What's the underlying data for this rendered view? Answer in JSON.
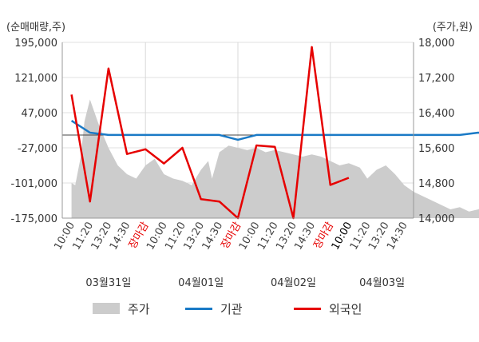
{
  "colors": {
    "price_area": "#cccccc",
    "institution_line": "#1a7ac6",
    "foreign_line": "#e60000",
    "grid": "#e0e0e0",
    "zero_line": "#444444",
    "session_close_text": "#e60000"
  },
  "chart_data": {
    "type": "line",
    "left_axis": {
      "unit_label": "(순매매량,주)",
      "ticks": [
        "195,000",
        "121,000",
        "47,000",
        "-27,000",
        "-101,000",
        "-175,000"
      ],
      "range": [
        -175000,
        195000
      ]
    },
    "right_axis": {
      "unit_label": "(주가,원)",
      "ticks": [
        "18,000",
        "17,200",
        "16,400",
        "15,600",
        "14,800",
        "14,000"
      ],
      "range": [
        14000,
        18000
      ]
    },
    "x_ticks": [
      "10:00",
      "11:20",
      "13:20",
      "14:30",
      "장마감",
      "10:00",
      "11:20",
      "13:20",
      "14:30",
      "장마감",
      "10:00",
      "11:20",
      "13:20",
      "14:30",
      "장마감",
      "10:00",
      "11:20",
      "13:20",
      "14:30"
    ],
    "dates": [
      "03월31일",
      "04월01일",
      "04월02일",
      "04월03일"
    ],
    "series": [
      {
        "name": "주가",
        "axis": "right",
        "kind": "area",
        "points": [
          [
            1,
            14800
          ],
          [
            1.2,
            14750
          ],
          [
            1.5,
            15400
          ],
          [
            1.7,
            16200
          ],
          [
            2,
            16700
          ],
          [
            2.5,
            16100
          ],
          [
            3,
            15600
          ],
          [
            3.5,
            15200
          ],
          [
            4,
            15000
          ],
          [
            4.5,
            14900
          ],
          [
            5,
            15200
          ],
          [
            5.5,
            15350
          ],
          [
            6,
            15000
          ],
          [
            6.5,
            14900
          ],
          [
            7,
            14850
          ],
          [
            7.5,
            14750
          ],
          [
            8,
            15100
          ],
          [
            8.4,
            15300
          ],
          [
            8.6,
            14900
          ],
          [
            9,
            15500
          ],
          [
            9.5,
            15650
          ],
          [
            10,
            15600
          ],
          [
            10.5,
            15550
          ],
          [
            11,
            15600
          ],
          [
            11.5,
            15500
          ],
          [
            12,
            15550
          ],
          [
            12.5,
            15500
          ],
          [
            13,
            15450
          ],
          [
            13.5,
            15400
          ],
          [
            14,
            15450
          ],
          [
            14.5,
            15400
          ],
          [
            15,
            15300
          ],
          [
            15.5,
            15200
          ],
          [
            16,
            15250
          ],
          [
            16.6,
            15150
          ],
          [
            17,
            14900
          ],
          [
            17.5,
            15100
          ],
          [
            18,
            15200
          ],
          [
            18.5,
            15000
          ],
          [
            19,
            14750
          ],
          [
            19.5,
            14600
          ],
          [
            20,
            14500
          ],
          [
            20.5,
            14400
          ],
          [
            21,
            14300
          ],
          [
            21.5,
            14200
          ],
          [
            22,
            14250
          ],
          [
            22.5,
            14150
          ],
          [
            23,
            14200
          ],
          [
            23.5,
            14300
          ],
          [
            23.8,
            14250
          ],
          [
            24,
            15000
          ],
          [
            24.5,
            14900
          ],
          [
            25,
            14800
          ],
          [
            25.3,
            14150
          ]
        ]
      },
      {
        "name": "기관",
        "axis": "left",
        "kind": "line",
        "points": [
          [
            1,
            30000
          ],
          [
            2,
            5000
          ],
          [
            3,
            0
          ],
          [
            4,
            0
          ],
          [
            5,
            0
          ],
          [
            6,
            0
          ],
          [
            7,
            0
          ],
          [
            8,
            0
          ],
          [
            9,
            0
          ],
          [
            10,
            -10000
          ],
          [
            11,
            0
          ],
          [
            12,
            0
          ],
          [
            13,
            0
          ],
          [
            14,
            0
          ],
          [
            15,
            0
          ],
          [
            16,
            0
          ],
          [
            17,
            0
          ],
          [
            18,
            0
          ],
          [
            19,
            0
          ],
          [
            20,
            0
          ],
          [
            21,
            0
          ],
          [
            22,
            0
          ],
          [
            23,
            5000
          ],
          [
            24,
            0
          ],
          [
            25,
            0
          ],
          [
            26,
            0
          ]
        ]
      },
      {
        "name": "외국인",
        "axis": "left",
        "kind": "line",
        "points": [
          [
            1,
            85000
          ],
          [
            2,
            -140000
          ],
          [
            3,
            140000
          ],
          [
            4,
            -40000
          ],
          [
            5,
            -30000
          ],
          [
            6,
            -60000
          ],
          [
            7,
            -27000
          ],
          [
            8,
            -135000
          ],
          [
            9,
            -140000
          ],
          [
            10,
            -175000
          ],
          [
            11,
            -22000
          ],
          [
            12,
            -25000
          ],
          [
            13,
            -175000
          ],
          [
            14,
            185000
          ],
          [
            15,
            -105000
          ],
          [
            16,
            -90000
          ]
        ]
      }
    ],
    "grid": true,
    "legend_position": "bottom"
  },
  "legend": {
    "price": "주가",
    "institution": "기관",
    "foreign": "외국인"
  }
}
